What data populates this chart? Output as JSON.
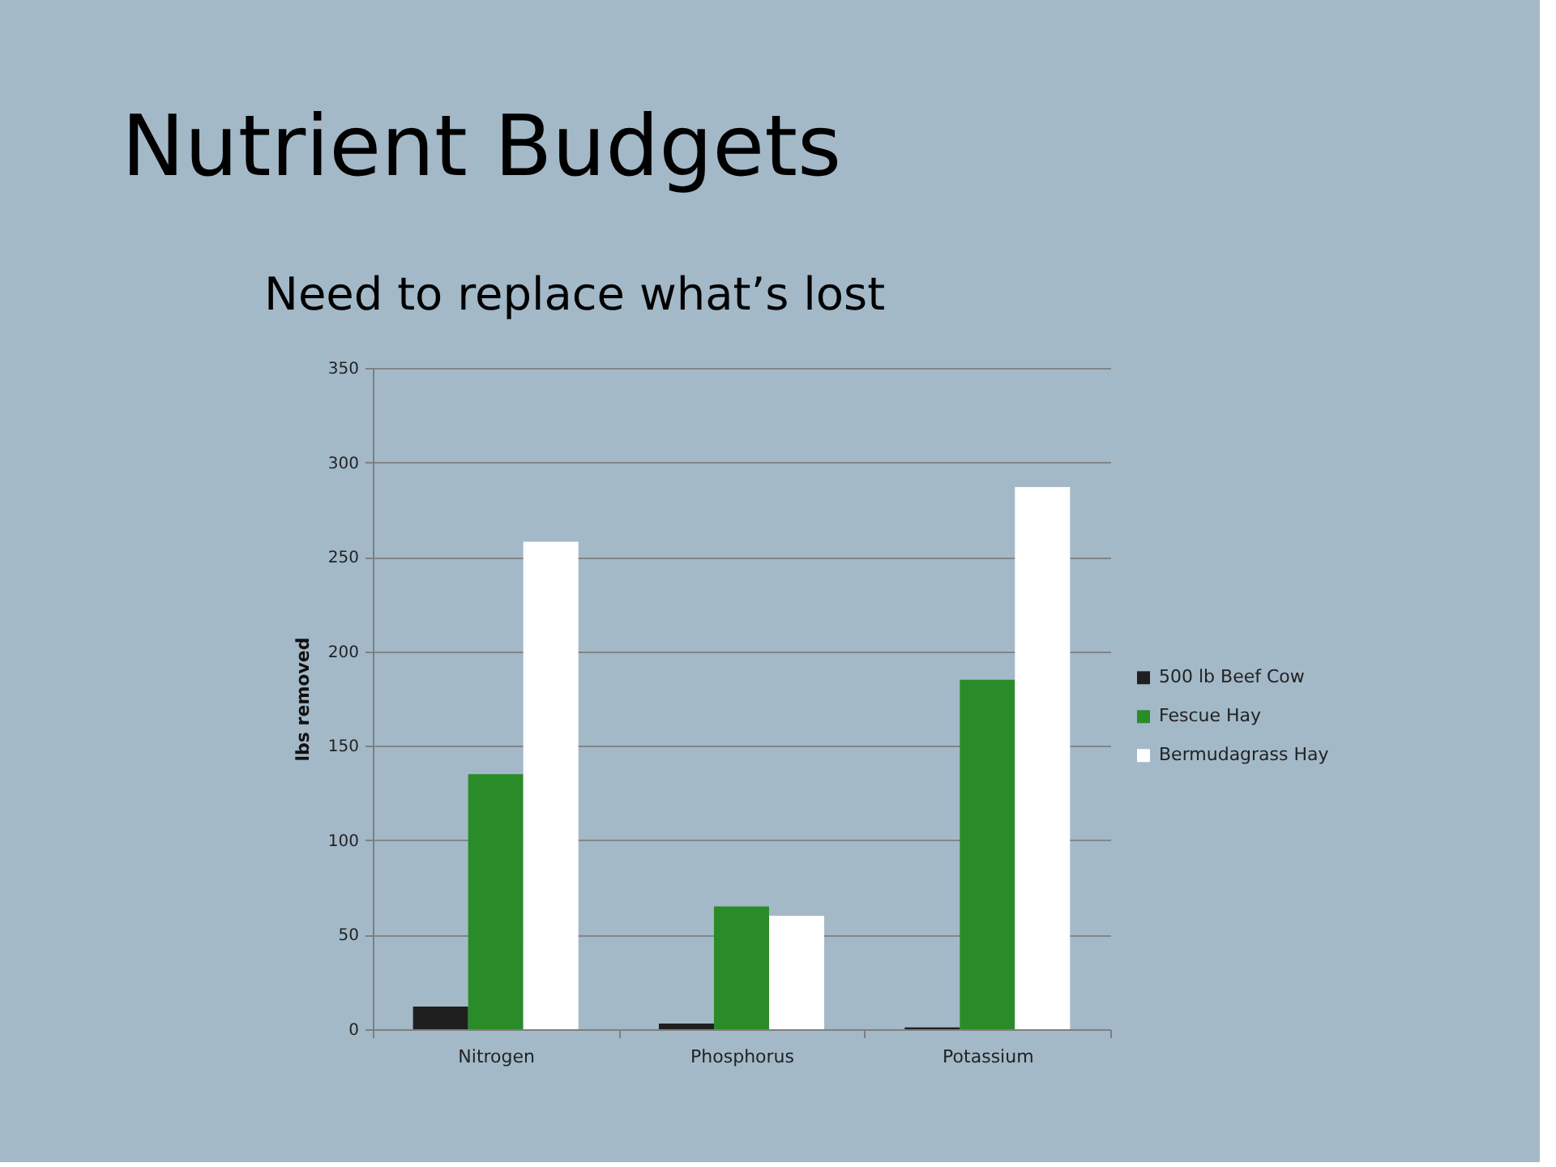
{
  "chart_data": {
    "type": "bar",
    "title": "Nutrient Budgets",
    "subtitle": "Need to replace what’s lost",
    "ylabel": "lbs removed",
    "categories": [
      "Nitrogen",
      "Phosphorus",
      "Potassium"
    ],
    "series": [
      {
        "name": "500 lb Beef Cow",
        "color": "#1f1f1f",
        "values": [
          12,
          3,
          1
        ]
      },
      {
        "name": "Fescue Hay",
        "color": "#2a8c28",
        "values": [
          135,
          65,
          185
        ]
      },
      {
        "name": "Bermudagrass Hay",
        "color": "#ffffff",
        "values": [
          258,
          60,
          287
        ]
      }
    ],
    "ylim": [
      0,
      350
    ],
    "yticks": [
      0,
      50,
      100,
      150,
      200,
      250,
      300,
      350
    ],
    "grid": "y",
    "legend": "right"
  }
}
